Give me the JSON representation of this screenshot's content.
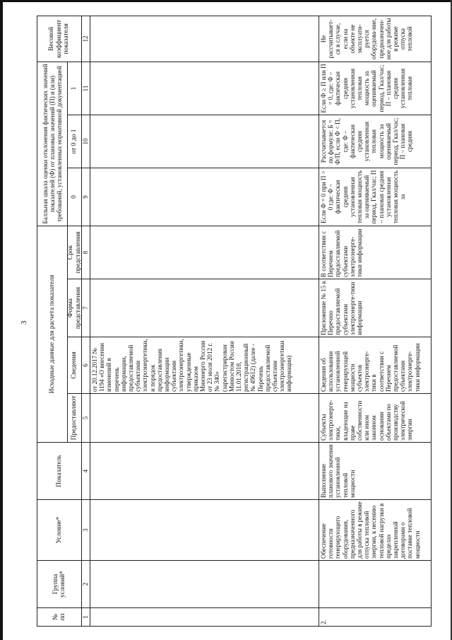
{
  "page_number": "3",
  "header": {
    "col1": "№ пп",
    "col2": "Группа условий*",
    "col3": "Условие*",
    "col4": "Показатель",
    "group_source": "Исходные данные для расчета показателя",
    "col5": "Предоставляют",
    "col6": "Сведения",
    "col7": "Форма представления",
    "col8": "Срок представления",
    "group_scale": "Балльная шкала оценки отклонения фактических значений показателей (Ф) от плановых значений (П) и (или) требований, установленных нормативной документацией",
    "col9": "0",
    "col10": "от 0 до 1",
    "col11": "1",
    "col12": "Весовой коэффициент показателя"
  },
  "column_numbers": [
    "1",
    "2",
    "3",
    "4",
    "5",
    "6",
    "7",
    "8",
    "9",
    "10",
    "11",
    "12"
  ],
  "rows": [
    {
      "c6": "от 20.12.2017 № 1194 «О внесении изменений в перечень информации, предоставляемой субъектами электроэнергетики, и порядок предоставления информации субъектами электроэнергетики, утвержденные приказом Минэнерго России от 23 июля 2012 г. № 340» (зарегистрирован Минюстом России 11.01.2018, регистрационный № 49612) (далее - Перечень предоставляемой субъектами электроэнергетики информации)"
    },
    {
      "c1": "2.",
      "c2": "",
      "c3": "Обеспечение готовности генерирующего оборудования, предназначенного для работы в режиме отпуска тепловой энергии, к несению тепловой нагрузки в пределах закрепленной договорами о поставке тепловой мощности",
      "c4": "Выполнение планового значения установленной тепловой мощности",
      "c5": "Субъекты электроэнерге-тики, владеющие на праве собственности или ином законном основании объектами по производству электрической энергии",
      "c6": "Сведения об использовании установленной генерирующей мощности субъектов электроэнерге-тики в соответствии с Перечнем предоставляемой субъектами электроэнерге-тики информации",
      "c7": "Приложение № 15 к Перечню предоставляемой субъектами электроэнерге-тики информации",
      "c8": "В соответствии с Перечнем предоставляемой субъектами электроэнерге-тики информации",
      "c9": "Если Ф = 0 при П > 0 где: Ф – фактическая средняя установленная тепловая мощность за оцениваемый период, Гкал/час; П – плановая средняя установленная тепловая мощность за",
      "c10": "Рассчитывается по формуле: Б = Ф/П, если Ф < П, где: Ф – фактическая средняя установленная тепловая мощность за оцениваемый период, Гкал/час; П – плановая средняя",
      "c11": "Если Ф ≥ П или П = 0, где: Ф – фактическая средняя установленная тепловая мощность за оцениваемый период, Гкал/час; П – плановая средняя установленная тепловая",
      "c12": "Не рассчитывает-ся в случае, если на объекте не эксплуати-руется оборудова-ние, предназначен-ное для работы в режиме отпуска тепловой"
    }
  ]
}
